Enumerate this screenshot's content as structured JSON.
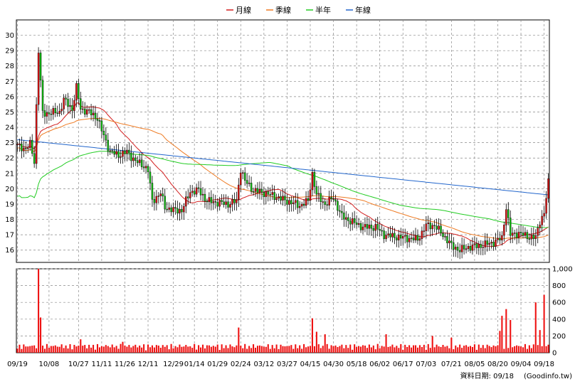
{
  "chart_data": {
    "type": "candlestick",
    "legend": [
      {
        "name": "月線",
        "color": "#d21e1e"
      },
      {
        "name": "季線",
        "color": "#ee7a22"
      },
      {
        "name": "半年",
        "color": "#22cc22"
      },
      {
        "name": "年線",
        "color": "#2266cc"
      }
    ],
    "price_axis": {
      "ticks": [
        16,
        17,
        18,
        19,
        20,
        21,
        22,
        23,
        24,
        25,
        26,
        27,
        28,
        29,
        30
      ],
      "ylim": [
        15.2,
        31.0
      ]
    },
    "volume_axis": {
      "ticks": [
        "0",
        "200",
        "400",
        "600",
        "800",
        "1,000"
      ],
      "values": [
        0,
        200,
        400,
        600,
        800,
        1000
      ],
      "ylim": [
        0,
        1000
      ]
    },
    "x_ticks": [
      {
        "i": 0,
        "label": "09/19"
      },
      {
        "i": 15,
        "label": "10/08"
      },
      {
        "i": 29,
        "label": "10/27"
      },
      {
        "i": 40,
        "label": "11/11"
      },
      {
        "i": 51,
        "label": "11/26"
      },
      {
        "i": 62,
        "label": "12/11"
      },
      {
        "i": 74,
        "label": "12/29"
      },
      {
        "i": 84,
        "label": "01/14"
      },
      {
        "i": 95,
        "label": "01/29"
      },
      {
        "i": 106,
        "label": "02/24"
      },
      {
        "i": 117,
        "label": "03/12"
      },
      {
        "i": 128,
        "label": "03/27"
      },
      {
        "i": 139,
        "label": "04/15"
      },
      {
        "i": 150,
        "label": "04/30"
      },
      {
        "i": 161,
        "label": "05/18"
      },
      {
        "i": 172,
        "label": "06/02"
      },
      {
        "i": 183,
        "label": "06/17"
      },
      {
        "i": 194,
        "label": "07/03"
      },
      {
        "i": 206,
        "label": "07/21"
      },
      {
        "i": 217,
        "label": "08/05"
      },
      {
        "i": 228,
        "label": "08/20"
      },
      {
        "i": 239,
        "label": "09/04"
      },
      {
        "i": 250,
        "label": "09/18"
      }
    ],
    "n_days": 253,
    "price_keyframes": [
      [
        0,
        22.8
      ],
      [
        4,
        22.6
      ],
      [
        6,
        22.9
      ],
      [
        8,
        21.8
      ],
      [
        10,
        29.0
      ],
      [
        12,
        24.9
      ],
      [
        20,
        25.0
      ],
      [
        22,
        25.8
      ],
      [
        26,
        25.2
      ],
      [
        28,
        26.6
      ],
      [
        30,
        25.2
      ],
      [
        34,
        25.0
      ],
      [
        38,
        24.6
      ],
      [
        40,
        23.8
      ],
      [
        44,
        22.4
      ],
      [
        48,
        22.2
      ],
      [
        52,
        22.4
      ],
      [
        56,
        21.8
      ],
      [
        60,
        21.5
      ],
      [
        62,
        21.2
      ],
      [
        64,
        19.2
      ],
      [
        68,
        19.7
      ],
      [
        70,
        18.8
      ],
      [
        74,
        18.6
      ],
      [
        78,
        18.6
      ],
      [
        82,
        19.8
      ],
      [
        86,
        19.9
      ],
      [
        90,
        19.2
      ],
      [
        95,
        19.1
      ],
      [
        100,
        19.0
      ],
      [
        104,
        19.2
      ],
      [
        106,
        21.3
      ],
      [
        108,
        20.5
      ],
      [
        112,
        19.9
      ],
      [
        118,
        19.7
      ],
      [
        124,
        19.4
      ],
      [
        130,
        19.1
      ],
      [
        134,
        18.9
      ],
      [
        138,
        19.2
      ],
      [
        140,
        21.0
      ],
      [
        142,
        19.6
      ],
      [
        146,
        19.0
      ],
      [
        150,
        19.4
      ],
      [
        154,
        18.2
      ],
      [
        158,
        17.9
      ],
      [
        164,
        17.5
      ],
      [
        170,
        17.5
      ],
      [
        174,
        17.0
      ],
      [
        178,
        16.9
      ],
      [
        184,
        16.8
      ],
      [
        190,
        16.7
      ],
      [
        194,
        17.6
      ],
      [
        198,
        17.6
      ],
      [
        202,
        17.0
      ],
      [
        206,
        16.3
      ],
      [
        210,
        16.0
      ],
      [
        214,
        16.2
      ],
      [
        220,
        16.3
      ],
      [
        226,
        16.5
      ],
      [
        230,
        16.8
      ],
      [
        232,
        18.8
      ],
      [
        234,
        17.0
      ],
      [
        238,
        17.1
      ],
      [
        242,
        16.9
      ],
      [
        246,
        16.8
      ],
      [
        248,
        17.9
      ],
      [
        250,
        18.4
      ],
      [
        252,
        20.4
      ]
    ],
    "volume_spikes": [
      [
        10,
        1000
      ],
      [
        11,
        420
      ],
      [
        30,
        160
      ],
      [
        50,
        130
      ],
      [
        105,
        300
      ],
      [
        140,
        410
      ],
      [
        142,
        250
      ],
      [
        146,
        220
      ],
      [
        175,
        220
      ],
      [
        197,
        200
      ],
      [
        206,
        180
      ],
      [
        229,
        260
      ],
      [
        230,
        440
      ],
      [
        232,
        520
      ],
      [
        234,
        390
      ],
      [
        246,
        600
      ],
      [
        248,
        270
      ],
      [
        250,
        690
      ]
    ],
    "source": "資料日期: 09/18",
    "brand": "(Goodinfo.tw)"
  }
}
